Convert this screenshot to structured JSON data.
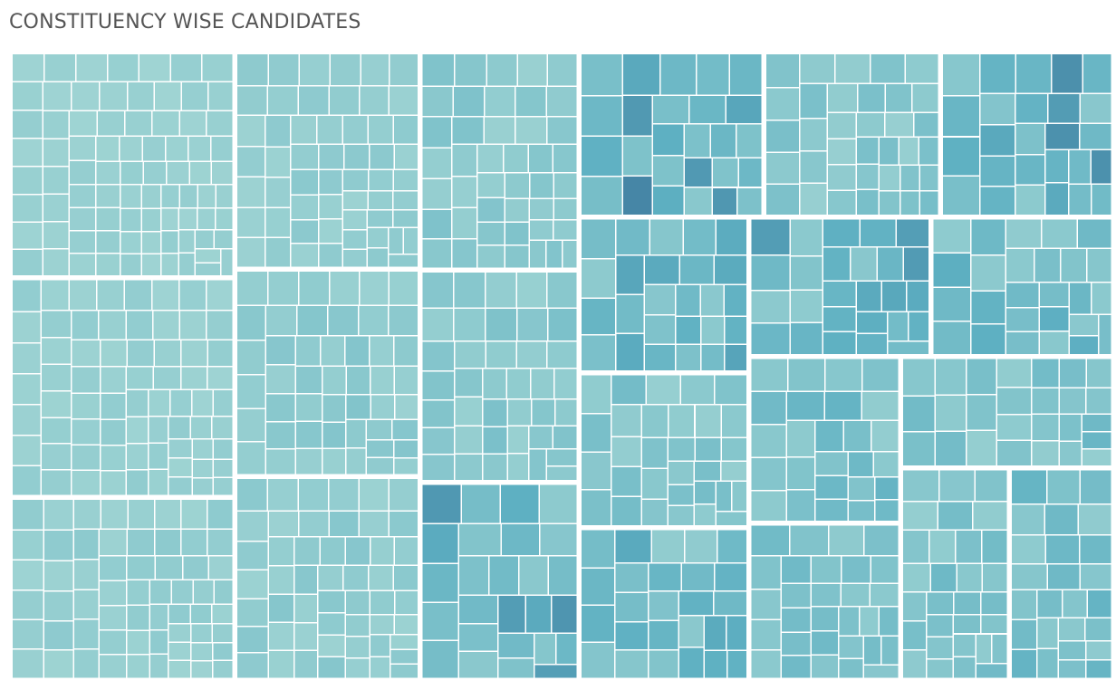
{
  "title": "CONSTITUENCY WISE CANDIDATES",
  "colors": {
    "light": "#a3d6d4",
    "mid": "#5eb0c2",
    "dark": "#2d5a88"
  },
  "chart_data": {
    "type": "treemap",
    "title": "CONSTITUENCY WISE CANDIDATES",
    "color_encoding": "sequential teal-to-navy",
    "tiles_per_group": [
      26,
      26,
      26,
      26,
      26,
      26,
      26,
      26,
      26,
      26,
      30,
      30,
      32,
      36,
      40,
      44,
      48,
      52,
      56,
      60,
      70,
      80
    ],
    "group_weight_profile": [
      1.0,
      0.92,
      0.87,
      0.82,
      0.79,
      0.77,
      0.75,
      0.73,
      0.71,
      0.7,
      0.69,
      0.68,
      0.67,
      0.66,
      0.64,
      0.62,
      0.6,
      0.58,
      0.56,
      0.54,
      0.52,
      0.5
    ],
    "color_scale_range": [
      0,
      1
    ]
  }
}
